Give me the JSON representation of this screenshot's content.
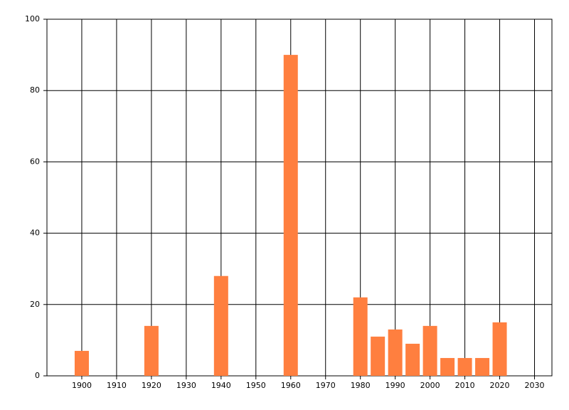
{
  "chart_data": {
    "type": "bar",
    "x": [
      1900,
      1920,
      1940,
      1960,
      1980,
      1985,
      1990,
      1995,
      2000,
      2005,
      2010,
      2015,
      2020
    ],
    "values": [
      7,
      14,
      28,
      90,
      22,
      11,
      13,
      9,
      14,
      5,
      5,
      5,
      15
    ],
    "color": "#ff7f3f",
    "xlim": [
      1890,
      2035
    ],
    "xticks": [
      1900,
      1910,
      1920,
      1930,
      1940,
      1950,
      1960,
      1970,
      1980,
      1990,
      2000,
      2010,
      2020,
      2030
    ],
    "ylim": [
      0,
      100
    ],
    "yticks": [
      0,
      20,
      40,
      60,
      80,
      100
    ],
    "grid": true
  }
}
